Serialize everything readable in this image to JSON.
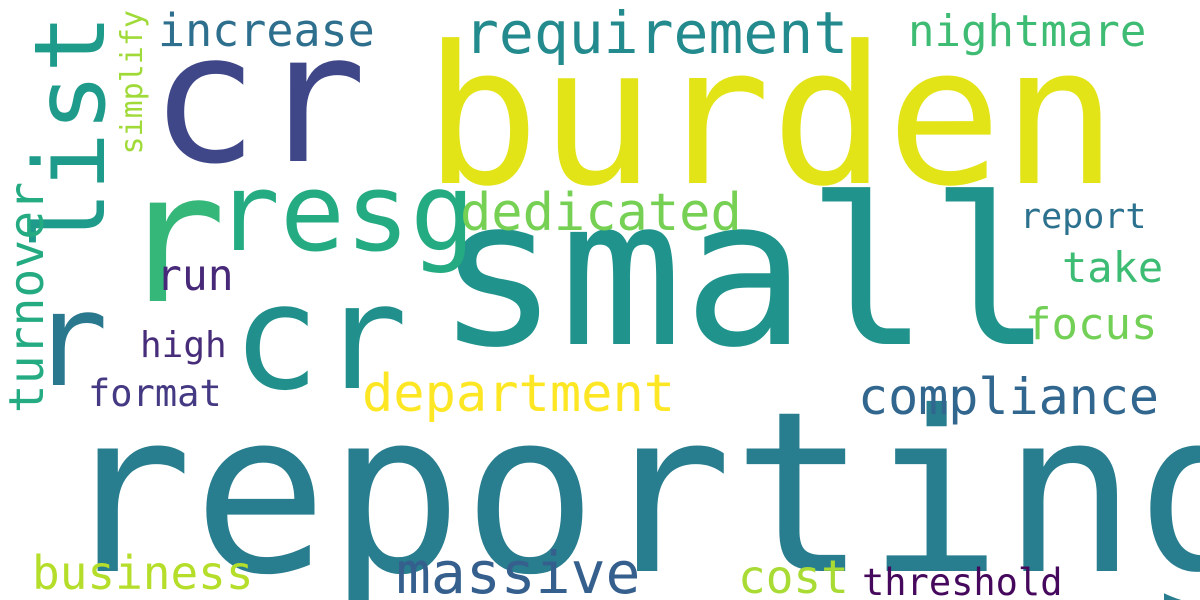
{
  "words": {
    "burden": {
      "text": "burden",
      "color": "#e2e418"
    },
    "reporting": {
      "text": "reporting",
      "color": "#287d8e"
    },
    "small": {
      "text": "small",
      "color": "#20938c"
    },
    "cr_top": {
      "text": "cr",
      "color": "#3f4788"
    },
    "cr_mid": {
      "text": "cr",
      "color": "#21908d"
    },
    "list": {
      "text": "list",
      "color": "#1e9b8a"
    },
    "resg": {
      "text": "resg",
      "color": "#25ab82"
    },
    "r": {
      "text": "r",
      "color": "#35b779"
    },
    "r_left": {
      "text": "r",
      "color": "#2a788e"
    },
    "requirement": {
      "text": "requirement",
      "color": "#238a8d"
    },
    "increase": {
      "text": "increase",
      "color": "#2e6f8e"
    },
    "nightmare": {
      "text": "nightmare",
      "color": "#3fbc73"
    },
    "simplify": {
      "text": "simplify",
      "color": "#a0da39"
    },
    "dedicated": {
      "text": "dedicated",
      "color": "#75d054"
    },
    "report": {
      "text": "report",
      "color": "#2c728e"
    },
    "take": {
      "text": "take",
      "color": "#3dbc74"
    },
    "run": {
      "text": "run",
      "color": "#482979"
    },
    "focus": {
      "text": "focus",
      "color": "#73d056"
    },
    "high": {
      "text": "high",
      "color": "#472c7a"
    },
    "turnover": {
      "text": "turnover",
      "color": "#25ab82"
    },
    "format": {
      "text": "format",
      "color": "#443a83"
    },
    "department": {
      "text": "department",
      "color": "#fde725"
    },
    "compliance": {
      "text": "compliance",
      "color": "#31668e"
    },
    "business": {
      "text": "business",
      "color": "#b5de2b"
    },
    "massive": {
      "text": "massive",
      "color": "#355f8d"
    },
    "cost": {
      "text": "cost",
      "color": "#a8db34"
    },
    "threshold": {
      "text": "threshold",
      "color": "#46085c"
    }
  }
}
